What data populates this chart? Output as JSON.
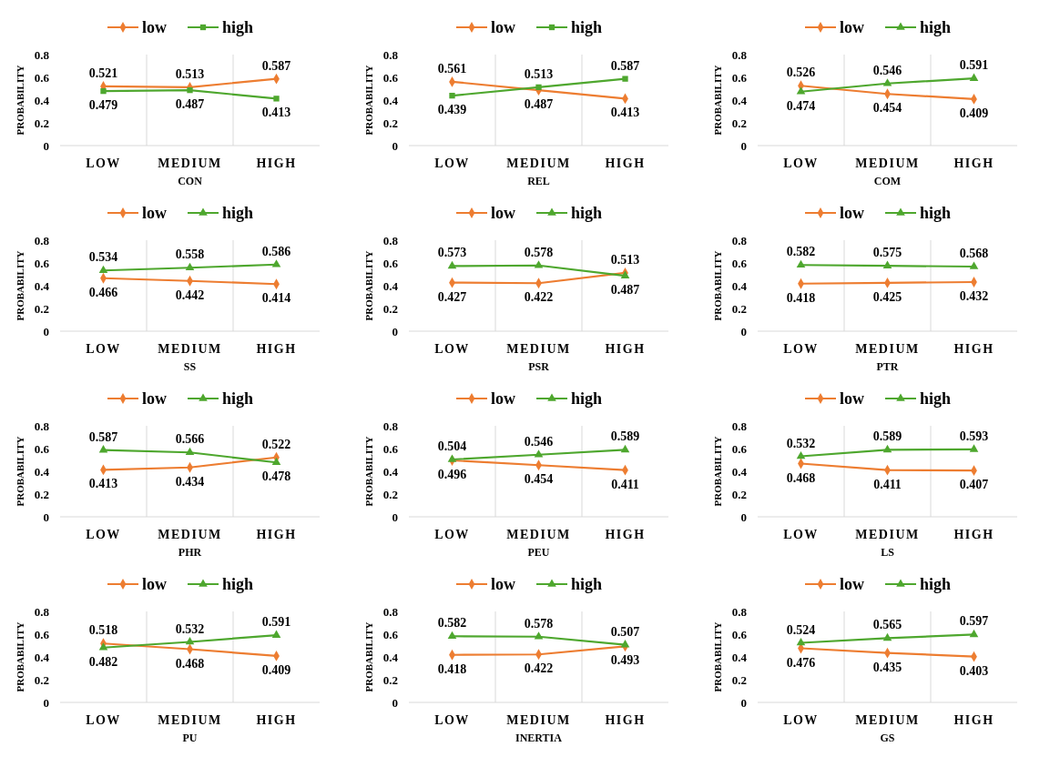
{
  "chart_data": [
    {
      "type": "line",
      "categories": [
        "LOW",
        "MEDIUM",
        "HIGH"
      ],
      "xlabel": "CON",
      "ylabel": "PROBABILITY",
      "ylim": [
        0,
        0.8
      ],
      "yticks": [
        0,
        0.2,
        0.4,
        0.6,
        0.8
      ],
      "grid": "x",
      "legend": "top",
      "data_labels": true,
      "series": [
        {
          "name": "low",
          "color": "#ed7d31",
          "marker": "diamond",
          "values": [
            0.521,
            0.513,
            0.587
          ]
        },
        {
          "name": "high",
          "color": "#4ea72e",
          "marker": "square",
          "values": [
            0.479,
            0.487,
            0.413
          ]
        }
      ]
    },
    {
      "type": "line",
      "categories": [
        "LOW",
        "MEDIUM",
        "HIGH"
      ],
      "xlabel": "REL",
      "ylabel": "PROBABILITY",
      "ylim": [
        0,
        0.8
      ],
      "yticks": [
        0,
        0.2,
        0.4,
        0.6,
        0.8
      ],
      "grid": "x",
      "legend": "top",
      "data_labels": true,
      "series": [
        {
          "name": "low",
          "color": "#ed7d31",
          "marker": "diamond",
          "values": [
            0.561,
            0.487,
            0.413
          ]
        },
        {
          "name": "high",
          "color": "#4ea72e",
          "marker": "square",
          "values": [
            0.439,
            0.513,
            0.587
          ]
        }
      ]
    },
    {
      "type": "line",
      "categories": [
        "LOW",
        "MEDIUM",
        "HIGH"
      ],
      "xlabel": "COM",
      "ylabel": "PROBABILITY",
      "ylim": [
        0,
        0.8
      ],
      "yticks": [
        0,
        0.2,
        0.4,
        0.6,
        0.8
      ],
      "grid": "x",
      "legend": "top",
      "data_labels": true,
      "series": [
        {
          "name": "low",
          "color": "#ed7d31",
          "marker": "diamond",
          "values": [
            0.526,
            0.454,
            0.409
          ]
        },
        {
          "name": "high",
          "color": "#4ea72e",
          "marker": "triangle",
          "values": [
            0.474,
            0.546,
            0.591
          ]
        }
      ]
    },
    {
      "type": "line",
      "categories": [
        "LOW",
        "MEDIUM",
        "HIGH"
      ],
      "xlabel": "SS",
      "ylabel": "PROBABILITY",
      "ylim": [
        0,
        0.8
      ],
      "yticks": [
        0,
        0.2,
        0.4,
        0.6,
        0.8
      ],
      "grid": "x",
      "legend": "top",
      "data_labels": true,
      "series": [
        {
          "name": "low",
          "color": "#ed7d31",
          "marker": "diamond",
          "values": [
            0.466,
            0.442,
            0.414
          ]
        },
        {
          "name": "high",
          "color": "#4ea72e",
          "marker": "triangle",
          "values": [
            0.534,
            0.558,
            0.586
          ]
        }
      ]
    },
    {
      "type": "line",
      "categories": [
        "LOW",
        "MEDIUM",
        "HIGH"
      ],
      "xlabel": "PSR",
      "ylabel": "PROBABILITY",
      "ylim": [
        0,
        0.8
      ],
      "yticks": [
        0,
        0.2,
        0.4,
        0.6,
        0.8
      ],
      "grid": "x",
      "legend": "top",
      "data_labels": true,
      "series": [
        {
          "name": "low",
          "color": "#ed7d31",
          "marker": "diamond",
          "values": [
            0.427,
            0.422,
            0.513
          ]
        },
        {
          "name": "high",
          "color": "#4ea72e",
          "marker": "triangle",
          "values": [
            0.573,
            0.578,
            0.487
          ]
        }
      ]
    },
    {
      "type": "line",
      "categories": [
        "LOW",
        "MEDIUM",
        "HIGH"
      ],
      "xlabel": "PTR",
      "ylabel": "PROBABILITY",
      "ylim": [
        0,
        0.8
      ],
      "yticks": [
        0,
        0.2,
        0.4,
        0.6,
        0.8
      ],
      "grid": "x",
      "legend": "top",
      "data_labels": true,
      "series": [
        {
          "name": "low",
          "color": "#ed7d31",
          "marker": "diamond",
          "values": [
            0.418,
            0.425,
            0.432
          ]
        },
        {
          "name": "high",
          "color": "#4ea72e",
          "marker": "triangle",
          "values": [
            0.582,
            0.575,
            0.568
          ]
        }
      ]
    },
    {
      "type": "line",
      "categories": [
        "LOW",
        "MEDIUM",
        "HIGH"
      ],
      "xlabel": "PHR",
      "ylabel": "PROBABILITY",
      "ylim": [
        0,
        0.8
      ],
      "yticks": [
        0,
        0.2,
        0.4,
        0.6,
        0.8
      ],
      "grid": "x",
      "legend": "top",
      "data_labels": true,
      "series": [
        {
          "name": "low",
          "color": "#ed7d31",
          "marker": "diamond",
          "values": [
            0.413,
            0.434,
            0.522
          ]
        },
        {
          "name": "high",
          "color": "#4ea72e",
          "marker": "triangle",
          "values": [
            0.587,
            0.566,
            0.478
          ]
        }
      ]
    },
    {
      "type": "line",
      "categories": [
        "LOW",
        "MEDIUM",
        "HIGH"
      ],
      "xlabel": "PEU",
      "ylabel": "PROBABILITY",
      "ylim": [
        0,
        0.8
      ],
      "yticks": [
        0,
        0.2,
        0.4,
        0.6,
        0.8
      ],
      "grid": "x",
      "legend": "top",
      "data_labels": true,
      "series": [
        {
          "name": "low",
          "color": "#ed7d31",
          "marker": "diamond",
          "values": [
            0.496,
            0.454,
            0.411
          ]
        },
        {
          "name": "high",
          "color": "#4ea72e",
          "marker": "triangle",
          "values": [
            0.504,
            0.546,
            0.589
          ]
        }
      ]
    },
    {
      "type": "line",
      "categories": [
        "LOW",
        "MEDIUM",
        "HIGH"
      ],
      "xlabel": "LS",
      "ylabel": "PROBABILITY",
      "ylim": [
        0,
        0.8
      ],
      "yticks": [
        0,
        0.2,
        0.4,
        0.6,
        0.8
      ],
      "grid": "x",
      "legend": "top",
      "data_labels": true,
      "series": [
        {
          "name": "low",
          "color": "#ed7d31",
          "marker": "diamond",
          "values": [
            0.468,
            0.411,
            0.407
          ]
        },
        {
          "name": "high",
          "color": "#4ea72e",
          "marker": "triangle",
          "values": [
            0.532,
            0.589,
            0.593
          ]
        }
      ]
    },
    {
      "type": "line",
      "categories": [
        "LOW",
        "MEDIUM",
        "HIGH"
      ],
      "xlabel": "PU",
      "ylabel": "PROBABILITY",
      "ylim": [
        0,
        0.8
      ],
      "yticks": [
        0,
        0.2,
        0.4,
        0.6,
        0.8
      ],
      "grid": "x",
      "legend": "top",
      "data_labels": true,
      "series": [
        {
          "name": "low",
          "color": "#ed7d31",
          "marker": "diamond",
          "values": [
            0.518,
            0.468,
            0.409
          ]
        },
        {
          "name": "high",
          "color": "#4ea72e",
          "marker": "triangle",
          "values": [
            0.482,
            0.532,
            0.591
          ]
        }
      ]
    },
    {
      "type": "line",
      "categories": [
        "LOW",
        "MEDIUM",
        "HIGH"
      ],
      "xlabel": "INERTIA",
      "ylabel": "PROBABILITY",
      "ylim": [
        0,
        0.8
      ],
      "yticks": [
        0,
        0.2,
        0.4,
        0.6,
        0.8
      ],
      "grid": "x",
      "legend": "top",
      "data_labels": true,
      "series": [
        {
          "name": "low",
          "color": "#ed7d31",
          "marker": "diamond",
          "values": [
            0.418,
            0.422,
            0.493
          ]
        },
        {
          "name": "high",
          "color": "#4ea72e",
          "marker": "triangle",
          "values": [
            0.582,
            0.578,
            0.507
          ]
        }
      ]
    },
    {
      "type": "line",
      "categories": [
        "LOW",
        "MEDIUM",
        "HIGH"
      ],
      "xlabel": "GS",
      "ylabel": "PROBABILITY",
      "ylim": [
        0,
        0.8
      ],
      "yticks": [
        0,
        0.2,
        0.4,
        0.6,
        0.8
      ],
      "grid": "x",
      "legend": "top",
      "data_labels": true,
      "series": [
        {
          "name": "low",
          "color": "#ed7d31",
          "marker": "diamond",
          "values": [
            0.476,
            0.435,
            0.403
          ]
        },
        {
          "name": "high",
          "color": "#4ea72e",
          "marker": "triangle",
          "values": [
            0.524,
            0.565,
            0.597
          ]
        }
      ]
    }
  ]
}
